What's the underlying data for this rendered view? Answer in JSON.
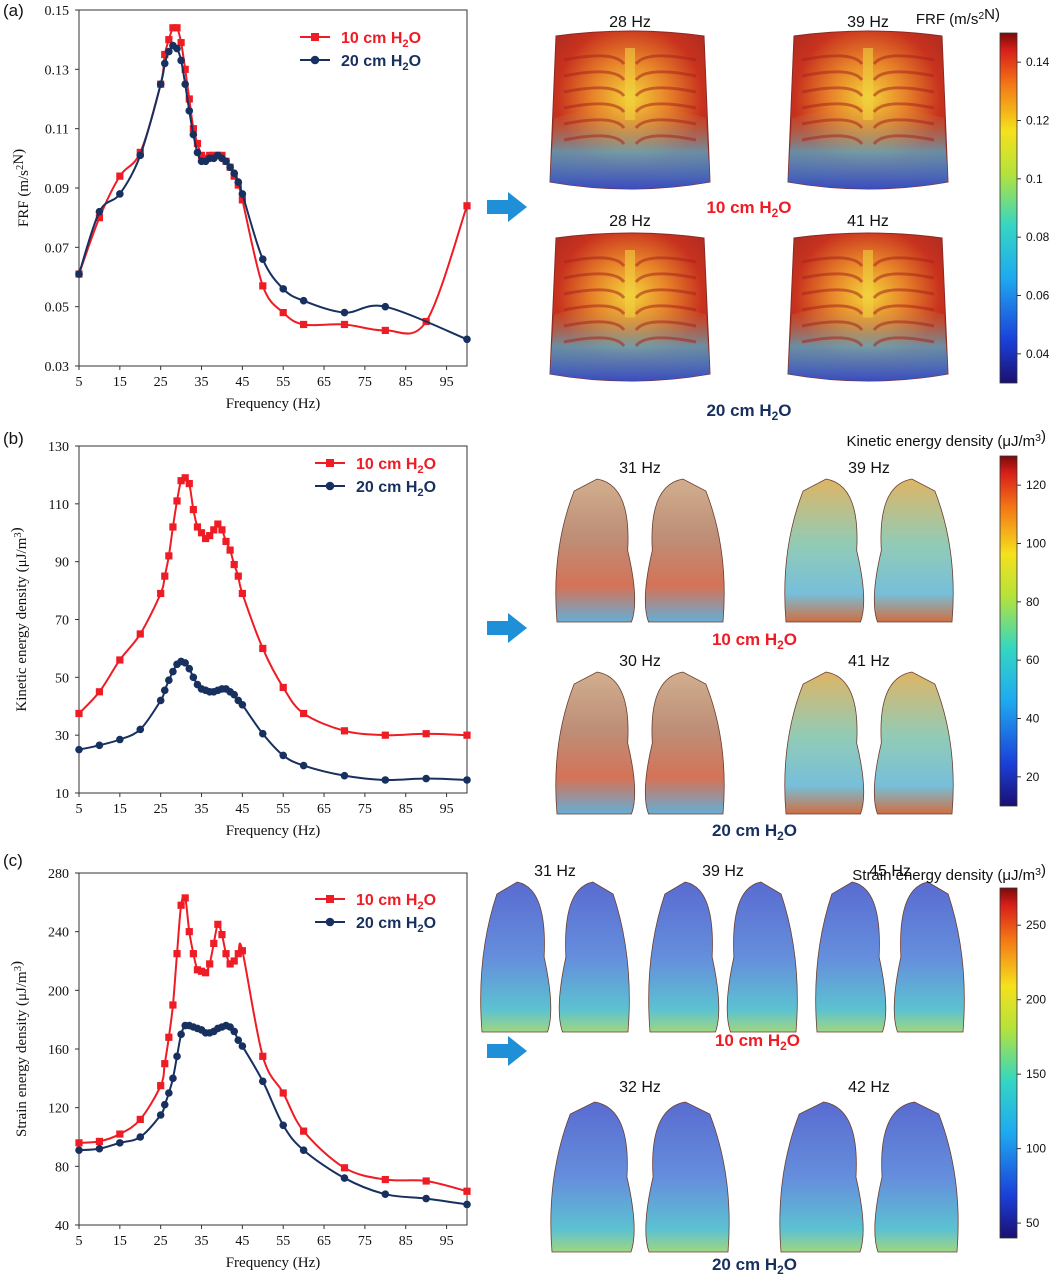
{
  "panels": [
    {
      "label": "(a)",
      "arrow": "right-arrow",
      "colorbar": {
        "title": "FRF (m/s²N)",
        "ticks": [
          0.14,
          0.12,
          0.1,
          0.08,
          0.06,
          0.04
        ],
        "min": 0.03,
        "max": 0.15
      },
      "rows": [
        {
          "label": "10 cm H₂O",
          "images": [
            {
              "freq": "28 Hz",
              "kind": "torso"
            },
            {
              "freq": "39 Hz",
              "kind": "torso"
            }
          ]
        },
        {
          "label": "20 cm H₂O",
          "images": [
            {
              "freq": "28 Hz",
              "kind": "torso"
            },
            {
              "freq": "41 Hz",
              "kind": "torso"
            }
          ]
        }
      ]
    },
    {
      "label": "(b)",
      "arrow": "right-arrow",
      "colorbar": {
        "title": "Kinetic energy density (μJ/m³)",
        "ticks": [
          120,
          100,
          80,
          60,
          40,
          20
        ],
        "min": 10,
        "max": 130
      },
      "rows": [
        {
          "label": "10 cm H₂O",
          "images": [
            {
              "freq": "31 Hz",
              "kind": "lung"
            },
            {
              "freq": "39 Hz",
              "kind": "lung"
            }
          ]
        },
        {
          "label": "20 cm H₂O",
          "images": [
            {
              "freq": "30 Hz",
              "kind": "lung"
            },
            {
              "freq": "41 Hz",
              "kind": "lung"
            }
          ]
        }
      ]
    },
    {
      "label": "(c)",
      "arrow": "right-arrow",
      "colorbar": {
        "title": "Strain energy density (μJ/m³)",
        "ticks": [
          250,
          200,
          150,
          100,
          50
        ],
        "min": 40,
        "max": 275
      },
      "rows": [
        {
          "label": "10 cm H₂O",
          "images": [
            {
              "freq": "31 Hz",
              "kind": "lung-blue"
            },
            {
              "freq": "39 Hz",
              "kind": "lung-blue"
            },
            {
              "freq": "45 Hz",
              "kind": "lung-blue"
            }
          ]
        },
        {
          "label": "20 cm H₂O",
          "images": [
            {
              "freq": "32 Hz",
              "kind": "lung-blue"
            },
            {
              "freq": "42 Hz",
              "kind": "lung-blue"
            }
          ]
        }
      ]
    }
  ],
  "colors": {
    "s10": "#ee1c25",
    "s20": "#17305f",
    "label10": "#ee1c25",
    "label20": "#17305f",
    "arrow": "#1f8fd8"
  },
  "chart_data": [
    {
      "type": "line",
      "ylabel": "FRF (m/s²N)",
      "xlabel": "Frequency (Hz)",
      "xlim": [
        5,
        100
      ],
      "ylim": [
        0.03,
        0.15
      ],
      "xticks": [
        5,
        15,
        25,
        35,
        45,
        55,
        65,
        75,
        85,
        95
      ],
      "yticks": [
        0.03,
        0.05,
        0.07,
        0.09,
        0.11,
        0.13,
        0.15
      ],
      "ytick_labels": [
        "0.03",
        "0.05",
        "0.07",
        "0.09",
        "0.11",
        "0.13",
        "0.15"
      ],
      "legend_position": "top-right",
      "series": [
        {
          "name": "10 cm H₂O",
          "color": "#ee1c25",
          "marker": "square",
          "x": [
            5,
            10,
            15,
            20,
            25,
            26,
            27,
            28,
            29,
            30,
            31,
            32,
            33,
            34,
            35,
            36,
            37,
            38,
            39,
            40,
            41,
            42,
            43,
            44,
            45,
            50,
            55,
            60,
            70,
            80,
            90,
            100
          ],
          "y": [
            0.061,
            0.08,
            0.094,
            0.102,
            0.125,
            0.135,
            0.14,
            0.144,
            0.144,
            0.139,
            0.13,
            0.12,
            0.11,
            0.105,
            0.101,
            0.1,
            0.101,
            0.101,
            0.101,
            0.101,
            0.099,
            0.097,
            0.094,
            0.091,
            0.086,
            0.057,
            0.048,
            0.044,
            0.044,
            0.042,
            0.045,
            0.084
          ]
        },
        {
          "name": "20 cm H₂O",
          "color": "#17305f",
          "marker": "circle",
          "x": [
            5,
            10,
            15,
            20,
            25,
            26,
            27,
            28,
            29,
            30,
            31,
            32,
            33,
            34,
            35,
            36,
            37,
            38,
            39,
            40,
            41,
            42,
            43,
            44,
            45,
            50,
            55,
            60,
            70,
            80,
            100
          ],
          "y": [
            0.061,
            0.082,
            0.088,
            0.101,
            0.125,
            0.132,
            0.136,
            0.138,
            0.137,
            0.133,
            0.125,
            0.116,
            0.108,
            0.102,
            0.099,
            0.099,
            0.1,
            0.1,
            0.101,
            0.1,
            0.099,
            0.097,
            0.095,
            0.092,
            0.088,
            0.066,
            0.056,
            0.052,
            0.048,
            0.05,
            0.039
          ]
        }
      ]
    },
    {
      "type": "line",
      "ylabel": "Kinetic energy density (μJ/m³)",
      "xlabel": "Frequency (Hz)",
      "xlim": [
        5,
        100
      ],
      "ylim": [
        10,
        130
      ],
      "xticks": [
        5,
        15,
        25,
        35,
        45,
        55,
        65,
        75,
        85,
        95
      ],
      "yticks": [
        10,
        30,
        50,
        70,
        90,
        110,
        130
      ],
      "ytick_labels": [
        "10",
        "30",
        "50",
        "70",
        "90",
        "110",
        "130"
      ],
      "legend_position": "top-right",
      "series": [
        {
          "name": "10 cm H₂O",
          "color": "#ee1c25",
          "marker": "square",
          "x": [
            5,
            10,
            15,
            20,
            25,
            26,
            27,
            28,
            29,
            30,
            31,
            32,
            33,
            34,
            35,
            36,
            37,
            38,
            39,
            40,
            41,
            42,
            43,
            44,
            45,
            50,
            55,
            60,
            70,
            80,
            90,
            100
          ],
          "y": [
            37.5,
            45,
            56,
            65,
            79,
            85,
            92,
            102,
            111,
            118,
            119,
            117,
            108,
            102,
            100,
            98,
            99,
            101,
            103,
            101,
            97,
            94,
            89,
            85,
            79,
            60,
            46.5,
            37.5,
            31.5,
            30,
            30.5,
            30
          ]
        },
        {
          "name": "20 cm H₂O",
          "color": "#17305f",
          "marker": "circle",
          "x": [
            5,
            10,
            15,
            20,
            25,
            26,
            27,
            28,
            29,
            30,
            31,
            32,
            33,
            34,
            35,
            36,
            37,
            38,
            39,
            40,
            41,
            42,
            43,
            44,
            45,
            50,
            55,
            60,
            70,
            80,
            90,
            100
          ],
          "y": [
            25,
            26.5,
            28.5,
            32,
            42,
            45.5,
            49,
            52,
            54.5,
            55.5,
            55,
            53,
            50,
            47.5,
            46,
            45.5,
            45,
            45,
            45.5,
            46,
            46,
            45,
            44,
            42,
            40.5,
            30.5,
            23,
            19.5,
            16,
            14.5,
            15,
            14.5
          ]
        }
      ]
    },
    {
      "type": "line",
      "ylabel": "Strain energy density (μJ/m³)",
      "xlabel": "Frequency (Hz)",
      "xlim": [
        5,
        100
      ],
      "ylim": [
        40,
        280
      ],
      "xticks": [
        5,
        15,
        25,
        35,
        45,
        55,
        65,
        75,
        85,
        95
      ],
      "yticks": [
        40,
        80,
        120,
        160,
        200,
        240,
        280
      ],
      "ytick_labels": [
        "40",
        "80",
        "120",
        "160",
        "200",
        "240",
        "280"
      ],
      "legend_position": "top-right",
      "series": [
        {
          "name": "10 cm H₂O",
          "color": "#ee1c25",
          "marker": "square",
          "x": [
            5,
            10,
            15,
            20,
            25,
            26,
            27,
            28,
            29,
            30,
            31,
            32,
            33,
            34,
            35,
            36,
            37,
            38,
            39,
            40,
            41,
            42,
            43,
            44,
            45,
            50,
            55,
            60,
            70,
            80,
            90,
            100
          ],
          "y": [
            96,
            97,
            102,
            112,
            135,
            150,
            168,
            190,
            225,
            258,
            263,
            240,
            225,
            214,
            213,
            212,
            218,
            232,
            245,
            238,
            225,
            218,
            220,
            225,
            227,
            155,
            130,
            104,
            79,
            71,
            70,
            63
          ]
        },
        {
          "name": "20 cm H₂O",
          "color": "#17305f",
          "marker": "circle",
          "x": [
            5,
            10,
            15,
            20,
            25,
            26,
            27,
            28,
            29,
            30,
            31,
            32,
            33,
            34,
            35,
            36,
            37,
            38,
            39,
            40,
            41,
            42,
            43,
            44,
            45,
            50,
            55,
            60,
            70,
            80,
            90,
            100
          ],
          "y": [
            91,
            92,
            96,
            100,
            115,
            122,
            130,
            140,
            155,
            170,
            176,
            176,
            175,
            174,
            173,
            171,
            171,
            172,
            174,
            175,
            176,
            175,
            172,
            166,
            162,
            138,
            108,
            91,
            72,
            61,
            58,
            54
          ]
        }
      ]
    }
  ]
}
